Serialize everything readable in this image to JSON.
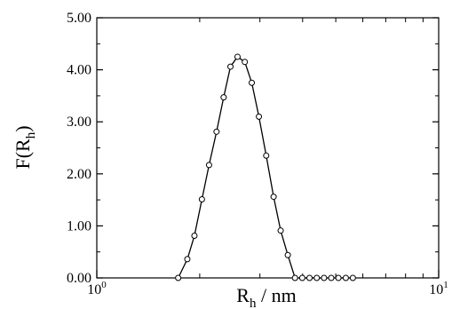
{
  "chart_data": {
    "type": "line",
    "title": "",
    "xlabel": {
      "main": "R",
      "sub": "h",
      "rest": " / nm"
    },
    "ylabel": {
      "main": "F(R",
      "sub": "h",
      "rest": ")"
    },
    "xscale": "log",
    "xlim": [
      1,
      10
    ],
    "ylim": [
      0,
      5
    ],
    "yticks": [
      {
        "v": 0,
        "label": "0.00"
      },
      {
        "v": 1,
        "label": "1.00"
      },
      {
        "v": 2,
        "label": "2.00"
      },
      {
        "v": 3,
        "label": "3.00"
      },
      {
        "v": 4,
        "label": "4.00"
      },
      {
        "v": 5,
        "label": "5.00"
      }
    ],
    "xticks": [
      {
        "v": 1,
        "base": "10",
        "exp": "0"
      },
      {
        "v": 10,
        "base": "10",
        "exp": "1"
      }
    ],
    "grid": false,
    "marker": "open-circle",
    "series": [
      {
        "x": [
          1.73,
          1.84,
          1.93,
          2.03,
          2.13,
          2.24,
          2.35,
          2.46,
          2.58,
          2.71,
          2.84,
          2.98,
          3.13,
          3.29,
          3.45,
          3.62,
          3.8,
          3.99,
          4.19,
          4.4,
          4.62,
          4.85,
          5.09,
          5.35,
          5.61
        ],
        "y": [
          0.0,
          0.36,
          0.81,
          1.51,
          2.17,
          2.81,
          3.47,
          4.06,
          4.25,
          4.15,
          3.75,
          3.1,
          2.35,
          1.56,
          0.91,
          0.44,
          0.0,
          0.0,
          0.0,
          0.0,
          0.0,
          0.0,
          0.0,
          0.0,
          0.0
        ]
      }
    ]
  }
}
